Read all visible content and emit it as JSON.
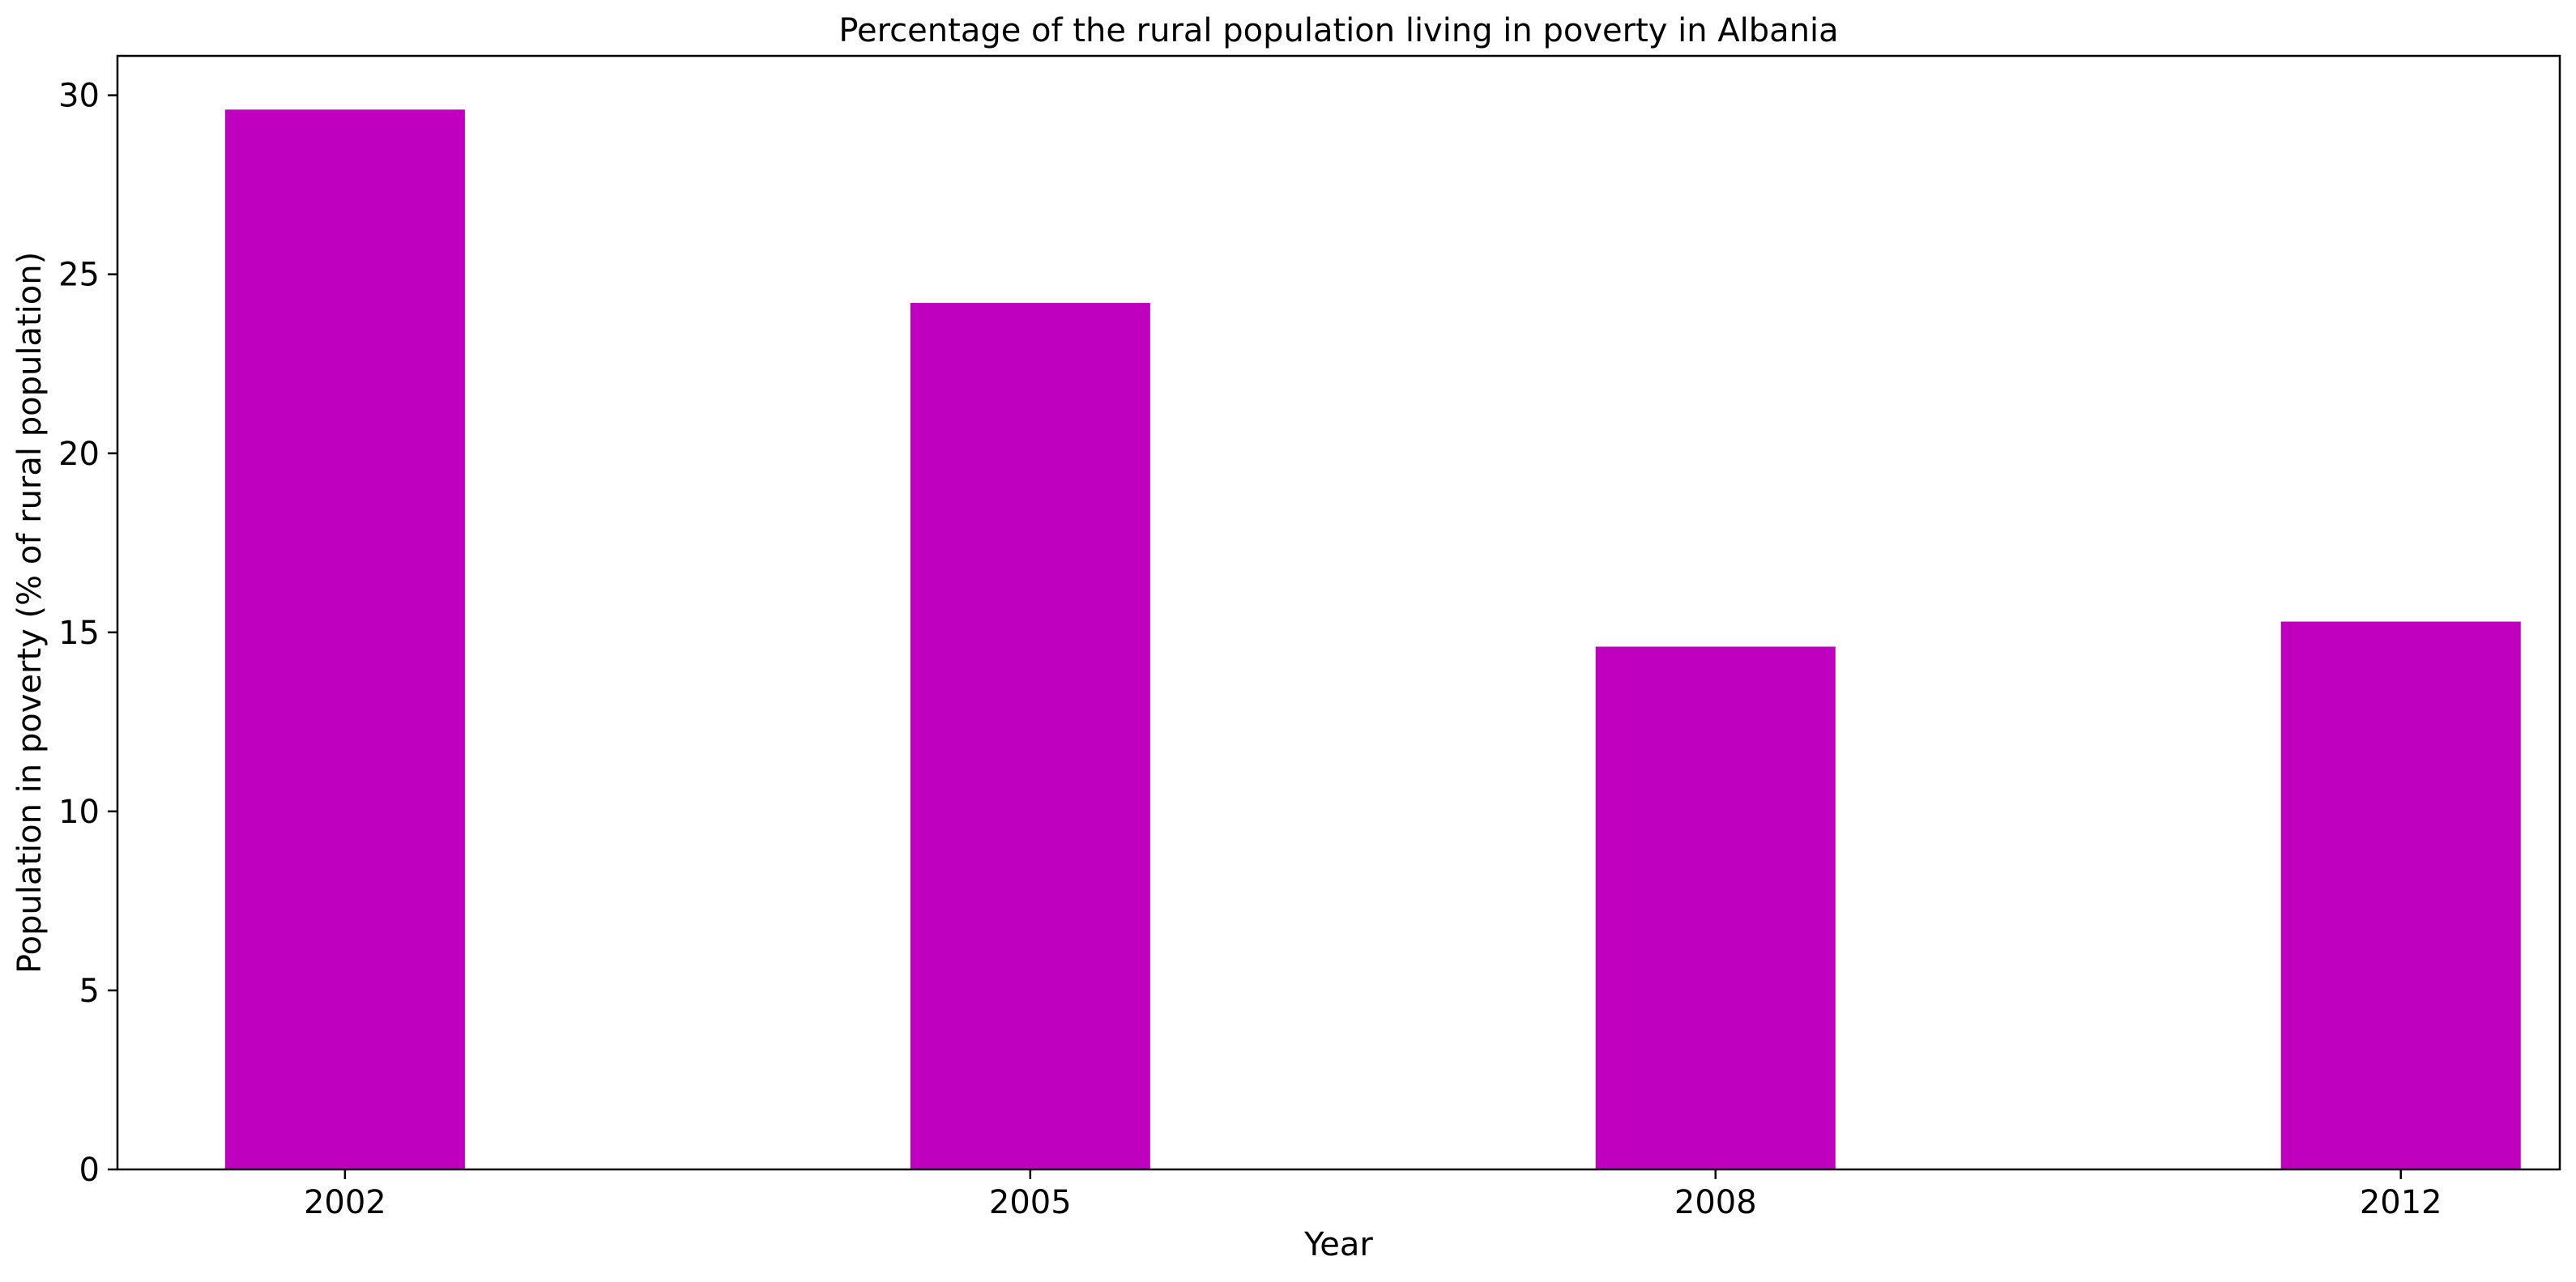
{
  "chart_data": {
    "type": "bar",
    "title": "Percentage of the rural population living in poverty in Albania",
    "xlabel": "Year",
    "ylabel": "Population in poverty (% of rural population)",
    "categories": [
      "2002",
      "2005",
      "2008",
      "2012"
    ],
    "values": [
      29.6,
      24.2,
      14.6,
      15.3
    ],
    "ylim": [
      0,
      31.1
    ],
    "yticks": [
      0,
      5,
      10,
      15,
      20,
      25,
      30
    ],
    "grid": false,
    "legend": "none",
    "bar_color": "#bf00bf"
  }
}
